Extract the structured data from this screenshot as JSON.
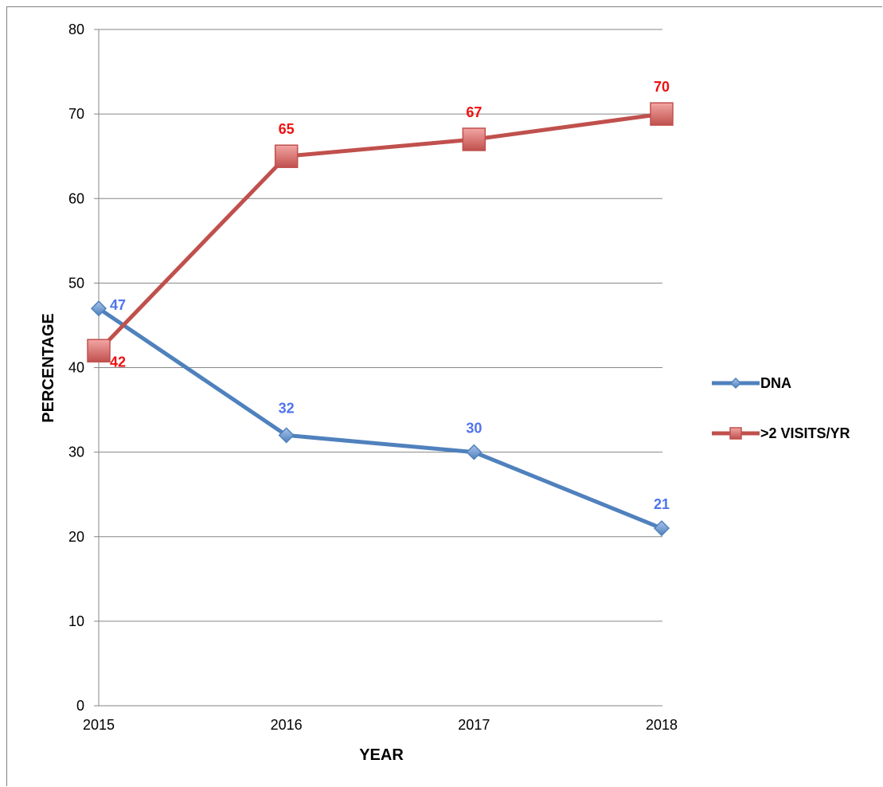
{
  "chart_data": {
    "type": "line",
    "categories": [
      "2015",
      "2016",
      "2017",
      "2018"
    ],
    "series": [
      {
        "name": "DNA",
        "values": [
          47,
          32,
          30,
          21
        ],
        "color": "#4F81BD",
        "label_color": "#4F74EE",
        "marker": "diamond"
      },
      {
        "name": ">2 VISITS/YR",
        "values": [
          42,
          65,
          67,
          70
        ],
        "color": "#C0504D",
        "label_color": "#EE1111",
        "marker": "square"
      }
    ],
    "xlabel": "YEAR",
    "ylabel": "PERCENTAGE",
    "ylim": [
      0,
      80
    ],
    "yticks": [
      "0",
      "10",
      "20",
      "30",
      "40",
      "50",
      "60",
      "70",
      "80"
    ],
    "grid": true,
    "legend_position": "right"
  }
}
